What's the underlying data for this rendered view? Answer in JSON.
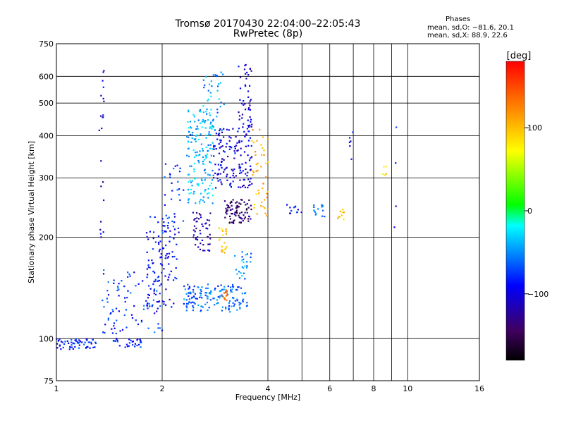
{
  "header": {
    "title_line1": "Tromsø 20170430 22:04:00–22:05:43",
    "title_line2": "RwPretec (8p)",
    "phase_title": "Phases",
    "phase_line1": "mean, sd,O: −81.6, 20.1",
    "phase_line2": "mean, sd,X:  88.9, 22.6"
  },
  "colorbar": {
    "label": "[deg]",
    "ticks": [
      {
        "label": "100",
        "value": 100
      },
      {
        "label": "0",
        "value": 0
      },
      {
        "label": "−100",
        "value": -100
      }
    ],
    "range": [
      -180,
      180
    ],
    "colors": [
      "#ff0000",
      "#ff8000",
      "#ffff00",
      "#00ff00",
      "#00ffff",
      "#0000ff",
      "#400060",
      "#000000"
    ]
  },
  "chart_data": {
    "type": "scatter",
    "title": "Tromsø 20170430 22:04:00–22:05:43",
    "subtitle": "RwPretec (8p)",
    "xlabel": "Frequency [MHz]",
    "ylabel": "Stationary phase Virtual Height [km]",
    "xscale": "log",
    "yscale": "log",
    "xlim": [
      1,
      16
    ],
    "ylim": [
      75,
      750
    ],
    "grid": true,
    "x_ticks": [
      {
        "label": "1",
        "value": 1
      },
      {
        "label": "2",
        "value": 2
      },
      {
        "label": "4",
        "value": 4
      },
      {
        "label": "6",
        "value": 6
      },
      {
        "label": "8",
        "value": 8
      },
      {
        "label": "10",
        "value": 10
      },
      {
        "label": "16",
        "value": 16
      }
    ],
    "x_minor_grid": [
      5,
      7,
      9
    ],
    "y_ticks": [
      {
        "label": "75",
        "value": 75
      },
      {
        "label": "100",
        "value": 100
      },
      {
        "label": "200",
        "value": 200
      },
      {
        "label": "300",
        "value": 300
      },
      {
        "label": "400",
        "value": 400
      },
      {
        "label": "500",
        "value": 500
      },
      {
        "label": "600",
        "value": 600
      },
      {
        "label": "750",
        "value": 750
      }
    ],
    "colorbar_label": "[deg]",
    "clusters": [
      {
        "f": [
          1.0,
          1.3
        ],
        "h": [
          93,
          100
        ],
        "phase": -85,
        "n": 60
      },
      {
        "f": [
          1.45,
          1.75
        ],
        "h": [
          94,
          100
        ],
        "phase": -80,
        "n": 30
      },
      {
        "f": [
          1.32,
          1.37
        ],
        "h": [
          180,
          640
        ],
        "phase": -105,
        "n": 22
      },
      {
        "f": [
          1.35,
          2.0
        ],
        "h": [
          102,
          160
        ],
        "phase": -75,
        "n": 90
      },
      {
        "f": [
          1.8,
          2.2
        ],
        "h": [
          120,
          230
        ],
        "phase": -95,
        "n": 100
      },
      {
        "f": [
          2.0,
          2.3
        ],
        "h": [
          200,
          330
        ],
        "phase": -80,
        "n": 40
      },
      {
        "f": [
          2.3,
          3.5
        ],
        "h": [
          120,
          145
        ],
        "phase": -60,
        "n": 150
      },
      {
        "f": [
          2.35,
          2.8
        ],
        "h": [
          250,
          480
        ],
        "phase": -40,
        "n": 160
      },
      {
        "f": [
          2.45,
          2.75
        ],
        "h": [
          180,
          240
        ],
        "phase": -115,
        "n": 50
      },
      {
        "f": [
          2.8,
          3.6
        ],
        "h": [
          280,
          420
        ],
        "phase": -100,
        "n": 150
      },
      {
        "f": [
          3.0,
          3.6
        ],
        "h": [
          220,
          260
        ],
        "phase": -140,
        "n": 80
      },
      {
        "f": [
          2.6,
          3.0
        ],
        "h": [
          400,
          620
        ],
        "phase": -45,
        "n": 40
      },
      {
        "f": [
          3.3,
          3.6
        ],
        "h": [
          420,
          650
        ],
        "phase": -105,
        "n": 50
      },
      {
        "f": [
          3.2,
          3.6
        ],
        "h": [
          150,
          185
        ],
        "phase": -50,
        "n": 25
      },
      {
        "f": [
          2.9,
          3.05
        ],
        "h": [
          178,
          215
        ],
        "phase": 95,
        "n": 20
      },
      {
        "f": [
          2.95,
          3.1
        ],
        "h": [
          130,
          140
        ],
        "phase": 140,
        "n": 10
      },
      {
        "f": [
          3.6,
          4.0
        ],
        "h": [
          230,
          420
        ],
        "phase": 110,
        "n": 45
      },
      {
        "f": [
          4.5,
          5.0
        ],
        "h": [
          235,
          250
        ],
        "phase": -90,
        "n": 12
      },
      {
        "f": [
          5.4,
          5.8
        ],
        "h": [
          230,
          250
        ],
        "phase": -60,
        "n": 15
      },
      {
        "f": [
          6.3,
          6.6
        ],
        "h": [
          225,
          245
        ],
        "phase": 100,
        "n": 10
      },
      {
        "f": [
          6.8,
          7.0
        ],
        "h": [
          330,
          420
        ],
        "phase": -90,
        "n": 6
      },
      {
        "f": [
          8.5,
          8.7
        ],
        "h": [
          305,
          325
        ],
        "phase": 80,
        "n": 5
      },
      {
        "f": [
          9.1,
          9.3
        ],
        "h": [
          200,
          480
        ],
        "phase": -95,
        "n": 4
      }
    ]
  }
}
